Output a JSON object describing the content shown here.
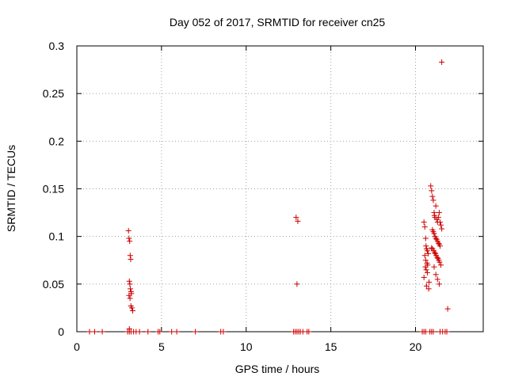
{
  "chart_data": {
    "type": "scatter",
    "title": "Day 052 of 2017, SRMTID for receiver cn25",
    "xlabel": "GPS time / hours",
    "ylabel": "SRMTID / TECUs",
    "xlim": [
      0,
      24
    ],
    "ylim": [
      0,
      0.3
    ],
    "xticks": [
      0,
      5,
      10,
      15,
      20
    ],
    "yticks": [
      0,
      0.05,
      0.1,
      0.15,
      0.2,
      0.25,
      0.3
    ],
    "ytick_labels": [
      "0",
      "0.05",
      "0.1",
      "0.15",
      "0.2",
      "0.25",
      "0.3"
    ],
    "grid": true,
    "marker": "+",
    "color": "#cc0000",
    "series": [
      {
        "name": "SRMTID",
        "x": [
          0.75,
          1.05,
          1.5,
          3.0,
          3.1,
          3.2,
          3.35,
          3.5,
          3.7,
          4.2,
          4.8,
          4.9,
          5.6,
          5.9,
          7.0,
          8.5,
          8.65,
          12.8,
          12.9,
          13.0,
          13.1,
          13.2,
          13.35,
          13.6,
          13.7,
          20.4,
          20.5,
          20.6,
          20.85,
          20.95,
          21.05,
          21.45,
          21.6,
          21.75,
          21.85,
          3.05,
          3.08,
          3.12,
          3.15,
          3.18,
          3.1,
          3.13,
          3.16,
          3.2,
          3.22,
          3.08,
          3.14,
          3.19,
          3.25,
          3.3,
          3.1,
          12.95,
          13.05,
          13.0,
          20.5,
          20.55,
          20.6,
          20.62,
          20.65,
          20.7,
          20.75,
          20.55,
          20.6,
          20.68,
          20.72,
          20.58,
          20.63,
          20.7,
          20.5,
          20.8,
          20.65,
          20.78,
          20.9,
          20.95,
          21.0,
          21.05,
          21.1,
          21.12,
          21.15,
          21.2,
          21.25,
          21.3,
          21.35,
          21.4,
          21.45,
          21.5,
          21.55,
          21.0,
          21.05,
          21.1,
          21.15,
          21.2,
          21.25,
          21.3,
          21.35,
          21.4,
          21.45,
          20.95,
          21.0,
          21.08,
          21.13,
          21.18,
          21.22,
          21.28,
          21.33,
          21.38,
          21.42,
          21.5,
          21.1,
          21.2,
          21.3,
          21.4,
          21.55,
          21.9
        ],
        "y": [
          0,
          0,
          0,
          0,
          0,
          0,
          0,
          0,
          0,
          0,
          0,
          0,
          0,
          0,
          0,
          0,
          0,
          0,
          0,
          0,
          0,
          0,
          0,
          0,
          0,
          0,
          0,
          0,
          0,
          0,
          0,
          0,
          0,
          0,
          0,
          0.106,
          0.098,
          0.095,
          0.08,
          0.076,
          0.053,
          0.05,
          0.045,
          0.042,
          0.04,
          0.038,
          0.035,
          0.027,
          0.025,
          0.022,
          0.003,
          0.12,
          0.116,
          0.05,
          0.115,
          0.11,
          0.098,
          0.09,
          0.087,
          0.085,
          0.082,
          0.08,
          0.075,
          0.072,
          0.07,
          0.068,
          0.065,
          0.062,
          0.057,
          0.052,
          0.048,
          0.045,
          0.153,
          0.148,
          0.142,
          0.138,
          0.125,
          0.122,
          0.12,
          0.132,
          0.118,
          0.115,
          0.12,
          0.125,
          0.115,
          0.112,
          0.108,
          0.107,
          0.105,
          0.103,
          0.1,
          0.098,
          0.097,
          0.095,
          0.093,
          0.092,
          0.09,
          0.088,
          0.087,
          0.085,
          0.083,
          0.082,
          0.08,
          0.078,
          0.077,
          0.075,
          0.073,
          0.07,
          0.068,
          0.06,
          0.055,
          0.05,
          0.283,
          0.024
        ]
      }
    ]
  }
}
